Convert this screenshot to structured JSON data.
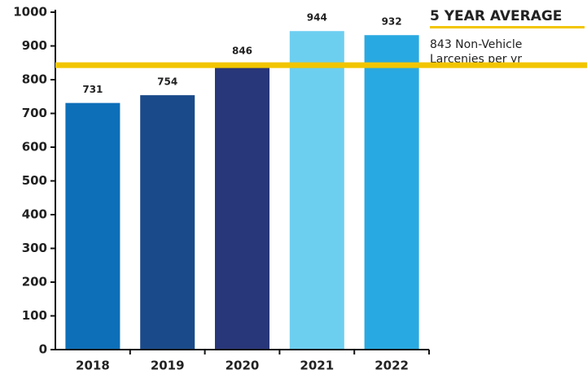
{
  "chart_data": {
    "type": "bar",
    "categories": [
      "2018",
      "2019",
      "2020",
      "2021",
      "2022"
    ],
    "values": [
      731,
      754,
      846,
      944,
      932
    ],
    "colors": [
      "#0d6fb8",
      "#1a4a8a",
      "#28367a",
      "#6dcff0",
      "#29a9e1"
    ],
    "ylim": [
      0,
      1000
    ],
    "yticks": [
      0,
      100,
      200,
      300,
      400,
      500,
      600,
      700,
      800,
      900,
      1000
    ],
    "reference_line": {
      "value": 843,
      "color": "#f2c500"
    },
    "annotation": {
      "title": "5 YEAR AVERAGE",
      "lines": [
        "843 Non-Vehicle",
        "Larcenies per yr"
      ]
    }
  }
}
